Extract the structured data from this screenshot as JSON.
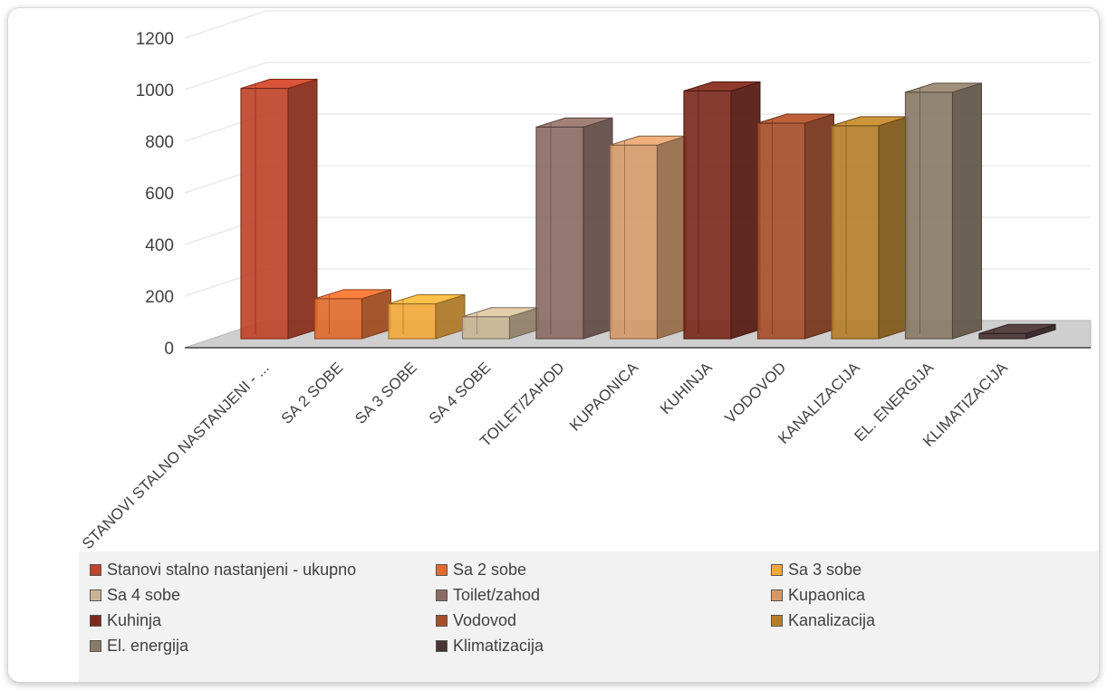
{
  "chart_data": {
    "type": "bar",
    "title": "",
    "xlabel": "",
    "ylabel": "",
    "ylim": [
      0,
      1200
    ],
    "yticks": [
      0,
      200,
      400,
      600,
      800,
      1000,
      1200
    ],
    "grid": true,
    "legend_position": "bottom",
    "categories": [
      "STANOVI STALNO NASTANJENI - ...",
      "SA 2 SOBE",
      "SA 3 SOBE",
      "SA 4 SOBE",
      "TOILET/ZAHOD",
      "KUPAONICA",
      "KUHINJA",
      "VODOVOD",
      "KANALIZACIJA",
      "EL. ENERGIJA",
      "KLIMATIZACIJA"
    ],
    "values": [
      970,
      155,
      135,
      85,
      820,
      750,
      960,
      835,
      825,
      955,
      20
    ],
    "colors": [
      "#c0432a",
      "#e06b2e",
      "#f2a93b",
      "#c9b596",
      "#8c6d66",
      "#d49a69",
      "#7b2a1d",
      "#a84e2b",
      "#b57f2a",
      "#8a7b68",
      "#4a3535"
    ],
    "legend": [
      "Stanovi stalno nastanjeni - ukupno",
      "Sa 2 sobe",
      "Sa 3 sobe",
      "Sa 4 sobe",
      "Toilet/zahod",
      "Kupaonica",
      "Kuhinja",
      "Vodovod",
      "Kanalizacija",
      "El. energija",
      "Klimatizacija"
    ]
  }
}
